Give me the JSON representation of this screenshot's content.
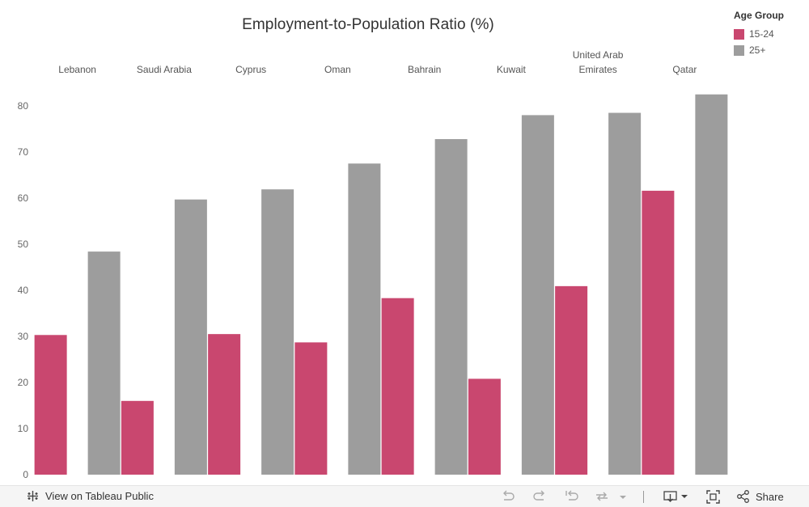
{
  "chart_data": {
    "type": "bar",
    "title": "Employment-to-Population Ratio (%)",
    "xlabel": "",
    "ylabel": "",
    "ylim": [
      0,
      82
    ],
    "yticks": [
      0,
      10,
      20,
      30,
      40,
      50,
      60,
      70,
      80
    ],
    "categories": [
      "Lebanon",
      "Saudi Arabia",
      "Cyprus",
      "Oman",
      "Bahrain",
      "Kuwait",
      "United Arab Emirates",
      "Qatar"
    ],
    "category_label_lines": [
      [
        "Lebanon"
      ],
      [
        "Saudi Arabia"
      ],
      [
        "Cyprus"
      ],
      [
        "Oman"
      ],
      [
        "Bahrain"
      ],
      [
        "Kuwait"
      ],
      [
        "United Arab",
        "Emirates"
      ],
      [
        "Qatar"
      ]
    ],
    "series": [
      {
        "name": "15-24",
        "color": "#c9476f",
        "values": [
          30.3,
          16.0,
          30.5,
          28.7,
          38.3,
          20.8,
          40.9,
          61.6
        ]
      },
      {
        "name": "25+",
        "color": "#9d9d9d",
        "values": [
          48.4,
          59.7,
          61.9,
          67.5,
          72.8,
          78.0,
          78.5,
          82.5
        ]
      }
    ],
    "grid": false,
    "legend_position": "top-right"
  },
  "legend": {
    "title": "Age Group",
    "items": [
      {
        "label": "15-24",
        "color": "#c9476f"
      },
      {
        "label": "25+",
        "color": "#9d9d9d"
      }
    ]
  },
  "toolbar": {
    "view_label": "View on Tableau Public",
    "share_label": "Share",
    "icons": [
      "tableau-logo-icon",
      "undo-icon",
      "redo-icon",
      "revert-icon",
      "refresh-icon",
      "download-icon",
      "fullscreen-icon",
      "share-icon"
    ]
  }
}
